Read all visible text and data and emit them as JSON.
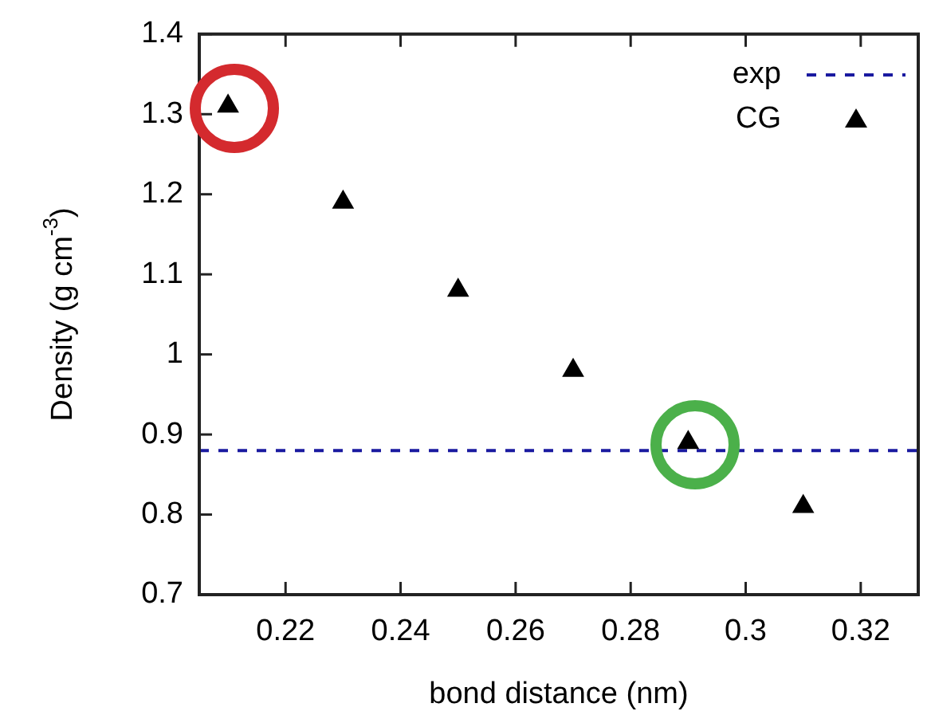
{
  "chart_data": {
    "type": "scatter",
    "xlabel": "bond distance (nm)",
    "ylabel": "Density (g cm$^{-3}$)",
    "x": [
      0.21,
      0.23,
      0.25,
      0.27,
      0.29,
      0.31
    ],
    "series": [
      {
        "name": "CG",
        "color": "#000000",
        "values": [
          1.31,
          1.19,
          1.08,
          0.98,
          0.89,
          0.81
        ]
      }
    ],
    "ref_lines": [
      {
        "axis": "y",
        "value": 0.88,
        "label": "exp",
        "color": "#1a1aa0",
        "line_style": "dashed"
      }
    ],
    "xlim": [
      0.205,
      0.33
    ],
    "xticks": [
      0.22,
      0.24,
      0.26,
      0.28,
      0.3,
      0.32
    ],
    "ylim": [
      0.7,
      1.4
    ],
    "yticks": [
      0.7,
      0.8,
      0.9,
      1,
      1.1,
      1.2,
      1.3,
      1.4
    ],
    "marker": "triangle",
    "grid": false,
    "legend": "top right"
  }
}
